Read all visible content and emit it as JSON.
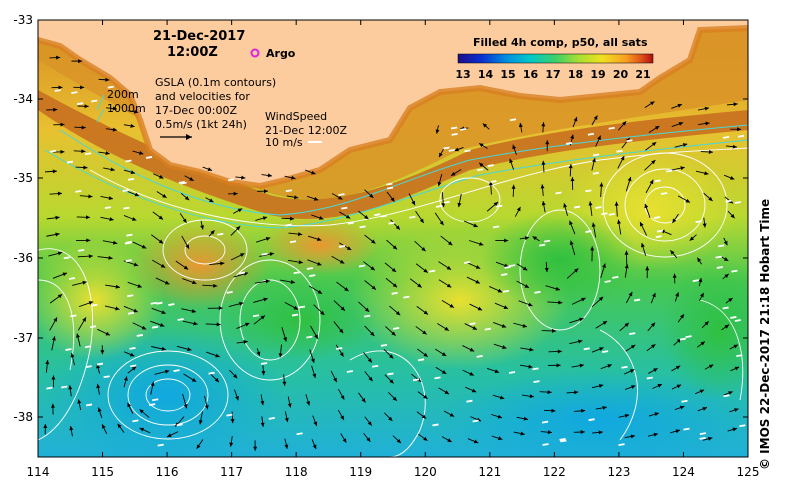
{
  "header": {
    "date": "21-Dec-2017",
    "time": "12:00Z",
    "argo_label": "Argo",
    "gsla_line1": "GSLA (0.1m contours)",
    "gsla_line2": "and velocities for",
    "gsla_line3": "17-Dec 00:00Z",
    "gsla_scale": "0.5m/s (1kt 24h)",
    "wind_line1": "WindSpeed",
    "wind_line2": "21-Dec 12:00Z",
    "wind_scale": "10 m/s",
    "depth_200": "200m",
    "depth_1000": "1000m"
  },
  "colorbar": {
    "title": "Filled 4h comp, p50, all sats",
    "ticks": [
      "13",
      "14",
      "15",
      "16",
      "17",
      "18",
      "19",
      "20",
      "21"
    ],
    "colors": [
      "#1b0f8a",
      "#0a2fd0",
      "#0090e0",
      "#00c8c8",
      "#3cd06a",
      "#a8e030",
      "#f0e020",
      "#f8a020",
      "#e05018",
      "#b01010"
    ]
  },
  "axes": {
    "x_ticks": [
      "114",
      "115",
      "116",
      "117",
      "118",
      "119",
      "120",
      "121",
      "122",
      "123",
      "124",
      "125"
    ],
    "y_ticks": [
      "-33",
      "-34",
      "-35",
      "-36",
      "-37",
      "-38"
    ]
  },
  "credit": "© IMOS 22-Dec-2017 21:18 Hobart Time",
  "colors": {
    "land": "#fccb9e",
    "frame": "#000000",
    "contour": "#ffffff",
    "isobath": "#48d8d8",
    "argo": "#e020e0"
  }
}
